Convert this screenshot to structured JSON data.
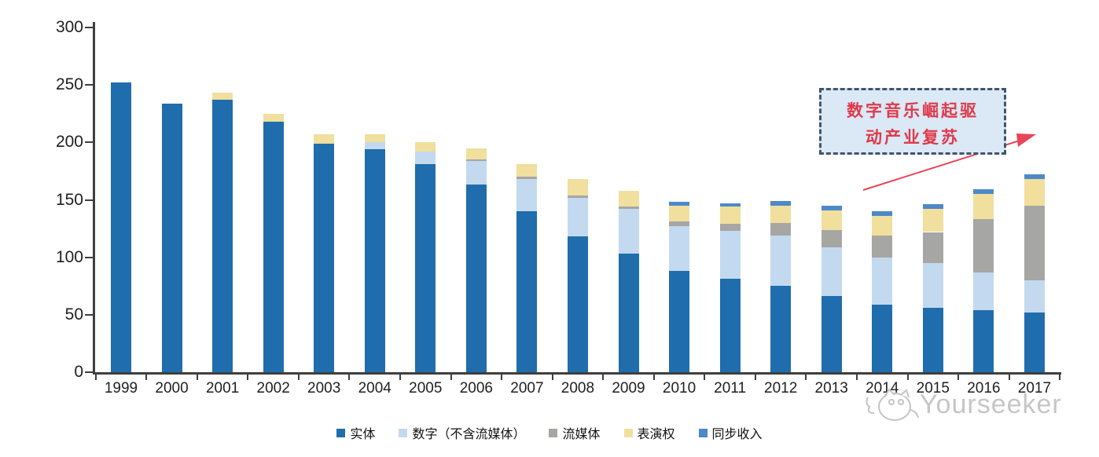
{
  "chart_data": {
    "type": "bar",
    "stacked": true,
    "title": "",
    "xlabel": "",
    "ylabel": "",
    "categories": [
      "1999",
      "2000",
      "2001",
      "2002",
      "2003",
      "2004",
      "2005",
      "2006",
      "2007",
      "2008",
      "2009",
      "2010",
      "2011",
      "2012",
      "2013",
      "2014",
      "2015",
      "2016",
      "2017"
    ],
    "series": [
      {
        "name": "实体",
        "color": "#1f6dad",
        "values": [
          252,
          234,
          237,
          218,
          199,
          194,
          181,
          163,
          140,
          118,
          103,
          88,
          81,
          75,
          66,
          59,
          56,
          54,
          52
        ]
      },
      {
        "name": "数字（不含流媒体）",
        "color": "#c3d9ef",
        "values": [
          0,
          0,
          0,
          0,
          0,
          6,
          11,
          21,
          28,
          34,
          39,
          39,
          42,
          44,
          43,
          41,
          39,
          33,
          28
        ]
      },
      {
        "name": "流媒体",
        "color": "#a6a6a5",
        "values": [
          0,
          0,
          0,
          0,
          0,
          0,
          0,
          1,
          2,
          2,
          2,
          4,
          6,
          11,
          15,
          19,
          27,
          46,
          65
        ]
      },
      {
        "name": "表演权",
        "color": "#f0df9d",
        "values": [
          0,
          0,
          6,
          7,
          8,
          7,
          8,
          10,
          11,
          14,
          14,
          14,
          15,
          15,
          17,
          17,
          20,
          22,
          23
        ]
      },
      {
        "name": "同步收入",
        "color": "#4d89c8",
        "values": [
          0,
          0,
          0,
          0,
          0,
          0,
          0,
          0,
          0,
          0,
          0,
          3,
          3,
          4,
          4,
          4,
          4,
          4,
          4
        ]
      }
    ],
    "ylim": [
      0,
      300
    ],
    "yticks": [
      0,
      50,
      100,
      150,
      200,
      250,
      300
    ],
    "grid": false,
    "legend_position": "bottom"
  },
  "annotation": {
    "line1": "数字音乐崛起驱",
    "line2": "动产业复苏",
    "text_color": "#e0394a",
    "box_fill": "#dbe8f6",
    "box_border_color": "#44546a",
    "arrow_color": "#e8455a"
  },
  "watermark": {
    "text": "Yourseeker",
    "logo": "yourseeker-cat-logo",
    "color": "#c6c6c6"
  }
}
